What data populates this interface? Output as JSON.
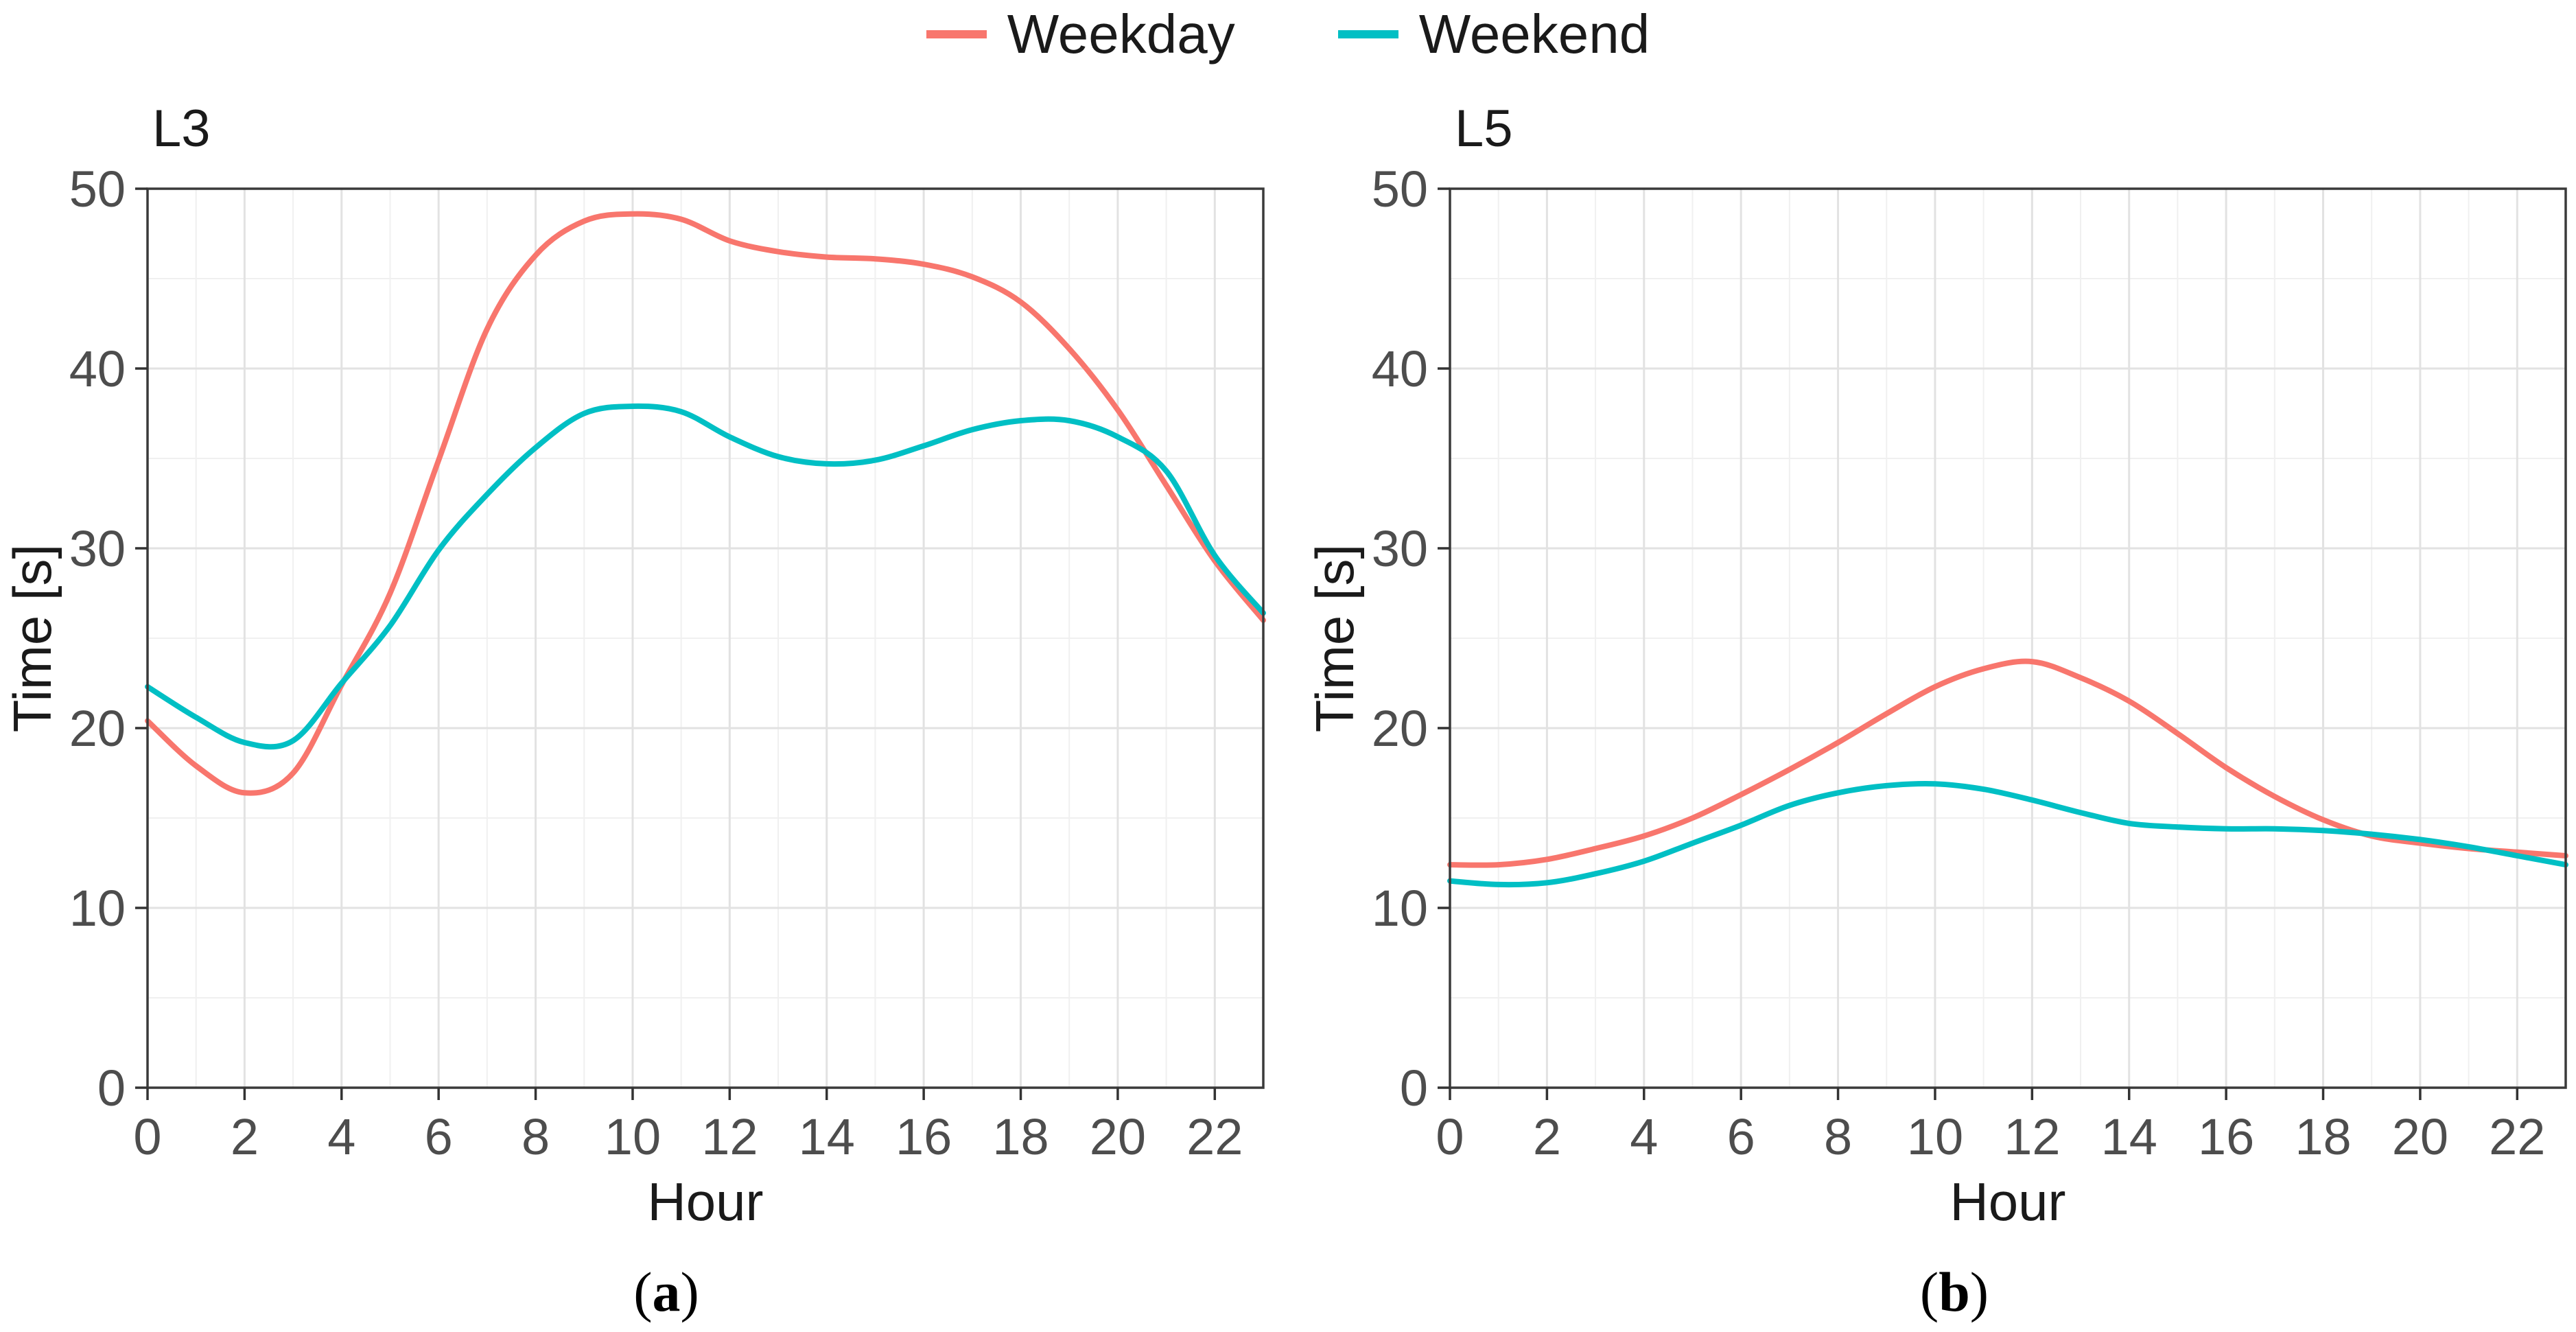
{
  "legend": {
    "items": [
      {
        "label": "Weekday",
        "color": "#F8766D"
      },
      {
        "label": "Weekend",
        "color": "#00BFC4"
      }
    ]
  },
  "chart_data": [
    {
      "type": "line",
      "panel_title": "L3",
      "caption": "(a)",
      "xlabel": "Hour",
      "ylabel": "Time [s]",
      "xlim": [
        0,
        23
      ],
      "ylim": [
        0,
        50
      ],
      "x_major_ticks": [
        0,
        2,
        4,
        6,
        8,
        10,
        12,
        14,
        16,
        18,
        20,
        22
      ],
      "x_minor_step": 1,
      "y_major_ticks": [
        0,
        10,
        20,
        30,
        40,
        50
      ],
      "y_minor_step": 5,
      "grid": "major+minor",
      "legend_position": "top-center",
      "x": [
        0,
        1,
        2,
        3,
        4,
        5,
        6,
        7,
        8,
        9,
        10,
        11,
        12,
        13,
        14,
        15,
        16,
        17,
        18,
        19,
        20,
        21,
        22,
        23
      ],
      "series": [
        {
          "name": "Weekday",
          "color": "#F8766D",
          "values": [
            20.4,
            17.9,
            16.4,
            17.5,
            22.4,
            27.5,
            34.9,
            42.2,
            46.3,
            48.2,
            48.6,
            48.3,
            47.1,
            46.5,
            46.2,
            46.1,
            45.8,
            45.1,
            43.7,
            41.1,
            37.7,
            33.5,
            29.3,
            26.0
          ]
        },
        {
          "name": "Weekend",
          "color": "#00BFC4",
          "values": [
            22.3,
            20.6,
            19.2,
            19.3,
            22.5,
            25.7,
            29.9,
            33.0,
            35.6,
            37.5,
            37.9,
            37.6,
            36.2,
            35.1,
            34.7,
            34.9,
            35.7,
            36.6,
            37.1,
            37.1,
            36.2,
            34.3,
            29.6,
            26.4
          ]
        }
      ]
    },
    {
      "type": "line",
      "panel_title": "L5",
      "caption": "(b)",
      "xlabel": "Hour",
      "ylabel": "Time [s]",
      "xlim": [
        0,
        23
      ],
      "ylim": [
        0,
        50
      ],
      "x_major_ticks": [
        0,
        2,
        4,
        6,
        8,
        10,
        12,
        14,
        16,
        18,
        20,
        22
      ],
      "x_minor_step": 1,
      "y_major_ticks": [
        0,
        10,
        20,
        30,
        40,
        50
      ],
      "y_minor_step": 5,
      "grid": "major+minor",
      "legend_position": "top-center",
      "x": [
        0,
        1,
        2,
        3,
        4,
        5,
        6,
        7,
        8,
        9,
        10,
        11,
        12,
        13,
        14,
        15,
        16,
        17,
        18,
        19,
        20,
        21,
        22,
        23
      ],
      "series": [
        {
          "name": "Weekday",
          "color": "#F8766D",
          "values": [
            12.4,
            12.4,
            12.7,
            13.3,
            14.0,
            15.0,
            16.3,
            17.7,
            19.2,
            20.8,
            22.3,
            23.3,
            23.7,
            22.8,
            21.5,
            19.7,
            17.8,
            16.2,
            14.9,
            14.0,
            13.6,
            13.3,
            13.1,
            12.9
          ]
        },
        {
          "name": "Weekend",
          "color": "#00BFC4",
          "values": [
            11.5,
            11.3,
            11.4,
            11.9,
            12.6,
            13.6,
            14.6,
            15.7,
            16.4,
            16.8,
            16.9,
            16.6,
            16.0,
            15.3,
            14.7,
            14.5,
            14.4,
            14.4,
            14.3,
            14.1,
            13.8,
            13.4,
            12.9,
            12.4
          ]
        }
      ]
    }
  ]
}
